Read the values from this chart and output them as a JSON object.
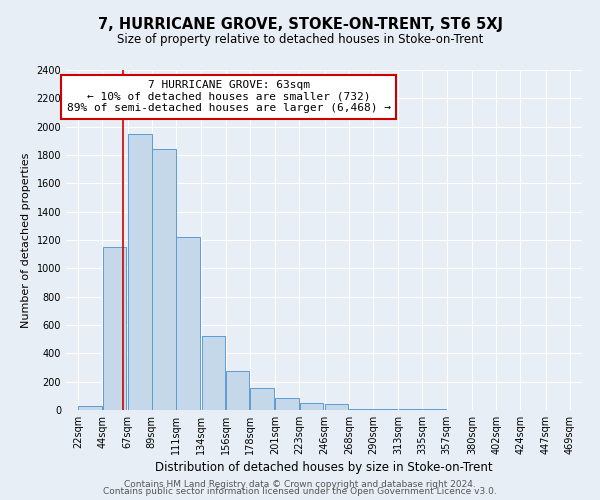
{
  "title": "7, HURRICANE GROVE, STOKE-ON-TRENT, ST6 5XJ",
  "subtitle": "Size of property relative to detached houses in Stoke-on-Trent",
  "xlabel": "Distribution of detached houses by size in Stoke-on-Trent",
  "ylabel": "Number of detached properties",
  "bar_left_edges": [
    22,
    44,
    67,
    89,
    111,
    134,
    156,
    178,
    201,
    223,
    246,
    268,
    290,
    313,
    335,
    357,
    380,
    402,
    424,
    447
  ],
  "bar_heights": [
    30,
    1150,
    1950,
    1840,
    1220,
    520,
    275,
    155,
    85,
    50,
    45,
    10,
    8,
    5,
    5,
    3,
    3,
    2,
    2,
    2
  ],
  "bin_width": 22,
  "bar_color": "#c5d8ea",
  "bar_edge_color": "#5b9bd5",
  "red_line_x": 63,
  "annotation_title": "7 HURRICANE GROVE: 63sqm",
  "annotation_line1": "← 10% of detached houses are smaller (732)",
  "annotation_line2": "89% of semi-detached houses are larger (6,468) →",
  "annotation_box_facecolor": "#ffffff",
  "annotation_box_edgecolor": "#cc0000",
  "red_line_color": "#cc0000",
  "tick_labels": [
    "22sqm",
    "44sqm",
    "67sqm",
    "89sqm",
    "111sqm",
    "134sqm",
    "156sqm",
    "178sqm",
    "201sqm",
    "223sqm",
    "246sqm",
    "268sqm",
    "290sqm",
    "313sqm",
    "335sqm",
    "357sqm",
    "380sqm",
    "402sqm",
    "424sqm",
    "447sqm",
    "469sqm"
  ],
  "ylim": [
    0,
    2400
  ],
  "yticks": [
    0,
    200,
    400,
    600,
    800,
    1000,
    1200,
    1400,
    1600,
    1800,
    2000,
    2200,
    2400
  ],
  "footnote1": "Contains HM Land Registry data © Crown copyright and database right 2024.",
  "footnote2": "Contains public sector information licensed under the Open Government Licence v3.0.",
  "bg_color": "#e8eef5",
  "plot_bg_color": "#e8eef5",
  "grid_color": "#ffffff",
  "title_fontsize": 10.5,
  "subtitle_fontsize": 8.5,
  "xlabel_fontsize": 8.5,
  "ylabel_fontsize": 8,
  "tick_fontsize": 7,
  "annotation_fontsize": 8,
  "footnote_fontsize": 6.5
}
